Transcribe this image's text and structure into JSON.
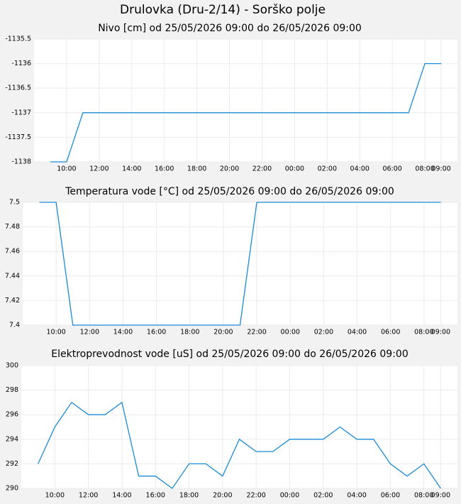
{
  "title": "Drulovka (Dru-2/14) - Sorško polje",
  "chart_data": [
    {
      "type": "line",
      "title": "Nivo [cm] od 25/05/2026 09:00 do 26/05/2026 09:00",
      "categories": [
        null,
        "10:00",
        null,
        "12:00",
        null,
        "14:00",
        null,
        "16:00",
        null,
        "18:00",
        null,
        "20:00",
        null,
        "22:00",
        null,
        "00:00",
        null,
        "02:00",
        null,
        "04:00",
        null,
        "06:00",
        null,
        "08:00",
        "09:00"
      ],
      "values": [
        -1138,
        -1138,
        -1137,
        -1137,
        -1137,
        -1137,
        -1137,
        -1137,
        -1137,
        -1137,
        -1137,
        -1137,
        -1137,
        -1137,
        -1137,
        -1137,
        -1137,
        -1137,
        -1137,
        -1137,
        -1137,
        -1137,
        -1137,
        -1136,
        -1136
      ],
      "color": "#1a8bd6",
      "ylim": [
        -1138,
        -1135.5
      ],
      "yticks": [
        -1138,
        -1137.5,
        -1137,
        -1136.5,
        -1136,
        -1135.5
      ],
      "grid": true
    },
    {
      "type": "line",
      "title": "Temperatura vode [°C] od 25/05/2026 09:00 do 26/05/2026 09:00",
      "categories": [
        null,
        "10:00",
        null,
        "12:00",
        null,
        "14:00",
        null,
        "16:00",
        null,
        "18:00",
        null,
        "20:00",
        null,
        "22:00",
        null,
        "00:00",
        null,
        "02:00",
        null,
        "04:00",
        null,
        "06:00",
        null,
        "08:00",
        "09:00"
      ],
      "values": [
        7.5,
        7.5,
        7.4,
        7.4,
        7.4,
        7.4,
        7.4,
        7.4,
        7.4,
        7.4,
        7.4,
        7.4,
        7.4,
        7.5,
        7.5,
        7.5,
        7.5,
        7.5,
        7.5,
        7.5,
        7.5,
        7.5,
        7.5,
        7.5,
        7.5
      ],
      "color": "#1a8bd6",
      "ylim": [
        7.4,
        7.5
      ],
      "yticks": [
        7.4,
        7.42,
        7.44,
        7.46,
        7.48,
        7.5
      ],
      "grid": true
    },
    {
      "type": "line",
      "title": "Elektroprevodnost vode [uS] od 25/05/2026 09:00 do 26/05/2026 09:00",
      "categories": [
        null,
        "10:00",
        null,
        "12:00",
        null,
        "14:00",
        null,
        "16:00",
        null,
        "18:00",
        null,
        "20:00",
        null,
        "22:00",
        null,
        "00:00",
        null,
        "02:00",
        null,
        "04:00",
        null,
        "06:00",
        null,
        "08:00",
        "09:00"
      ],
      "values": [
        292,
        295,
        297,
        296,
        296,
        297,
        291,
        291,
        290,
        292,
        292,
        291,
        294,
        293,
        293,
        294,
        294,
        294,
        295,
        294,
        294,
        292,
        291,
        292,
        290
      ],
      "color": "#1a8bd6",
      "ylim": [
        290,
        300
      ],
      "yticks": [
        290,
        292,
        294,
        296,
        298,
        300
      ],
      "grid": true
    }
  ]
}
